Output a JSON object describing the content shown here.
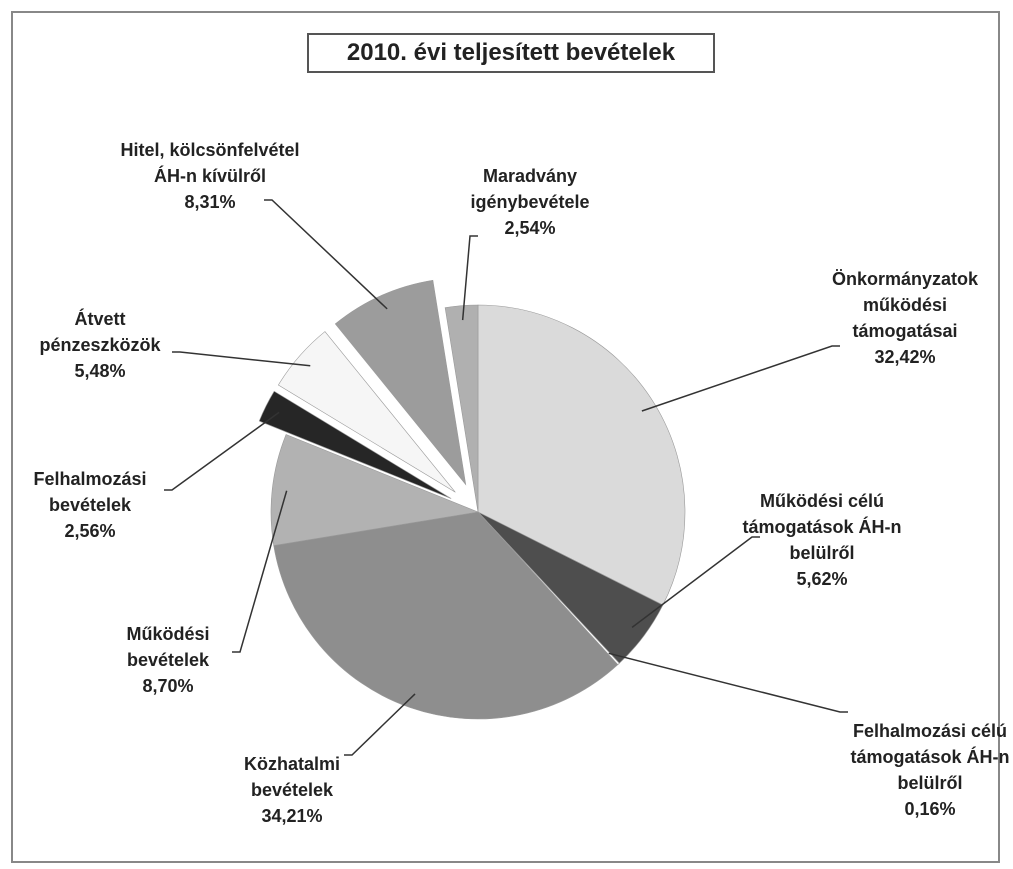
{
  "chart_data": {
    "type": "pie",
    "title": "2010. évi teljesített bevételek",
    "categories": [
      "Önkormányzatok működési támogatásai",
      "Működési célú támogatások ÁH-n belülről",
      "Felhalmozási célú támogatások ÁH-n belülről",
      "Közhatalmi bevételek",
      "Működési bevételek",
      "Felhalmozási bevételek",
      "Átvett pénzeszközök",
      "Hitel, kölcsönfelvétel ÁH-n kívülről",
      "Maradvány igénybevétele"
    ],
    "values": [
      32.42,
      5.62,
      0.16,
      34.21,
      8.7,
      2.56,
      5.48,
      8.31,
      2.54
    ],
    "value_labels": [
      "32,42%",
      "5,62%",
      "0,16%",
      "34,21%",
      "8,70%",
      "2,56%",
      "5,48%",
      "8,31%",
      "2,54%"
    ],
    "colors": [
      "#dadada",
      "#4e4e4e",
      "#ffffff",
      "#8e8e8e",
      "#b2b2b2",
      "#262626",
      "#f6f6f6",
      "#9c9c9c",
      "#b0b0b0"
    ],
    "exploded": [
      false,
      false,
      false,
      false,
      false,
      true,
      true,
      true,
      false
    ]
  }
}
